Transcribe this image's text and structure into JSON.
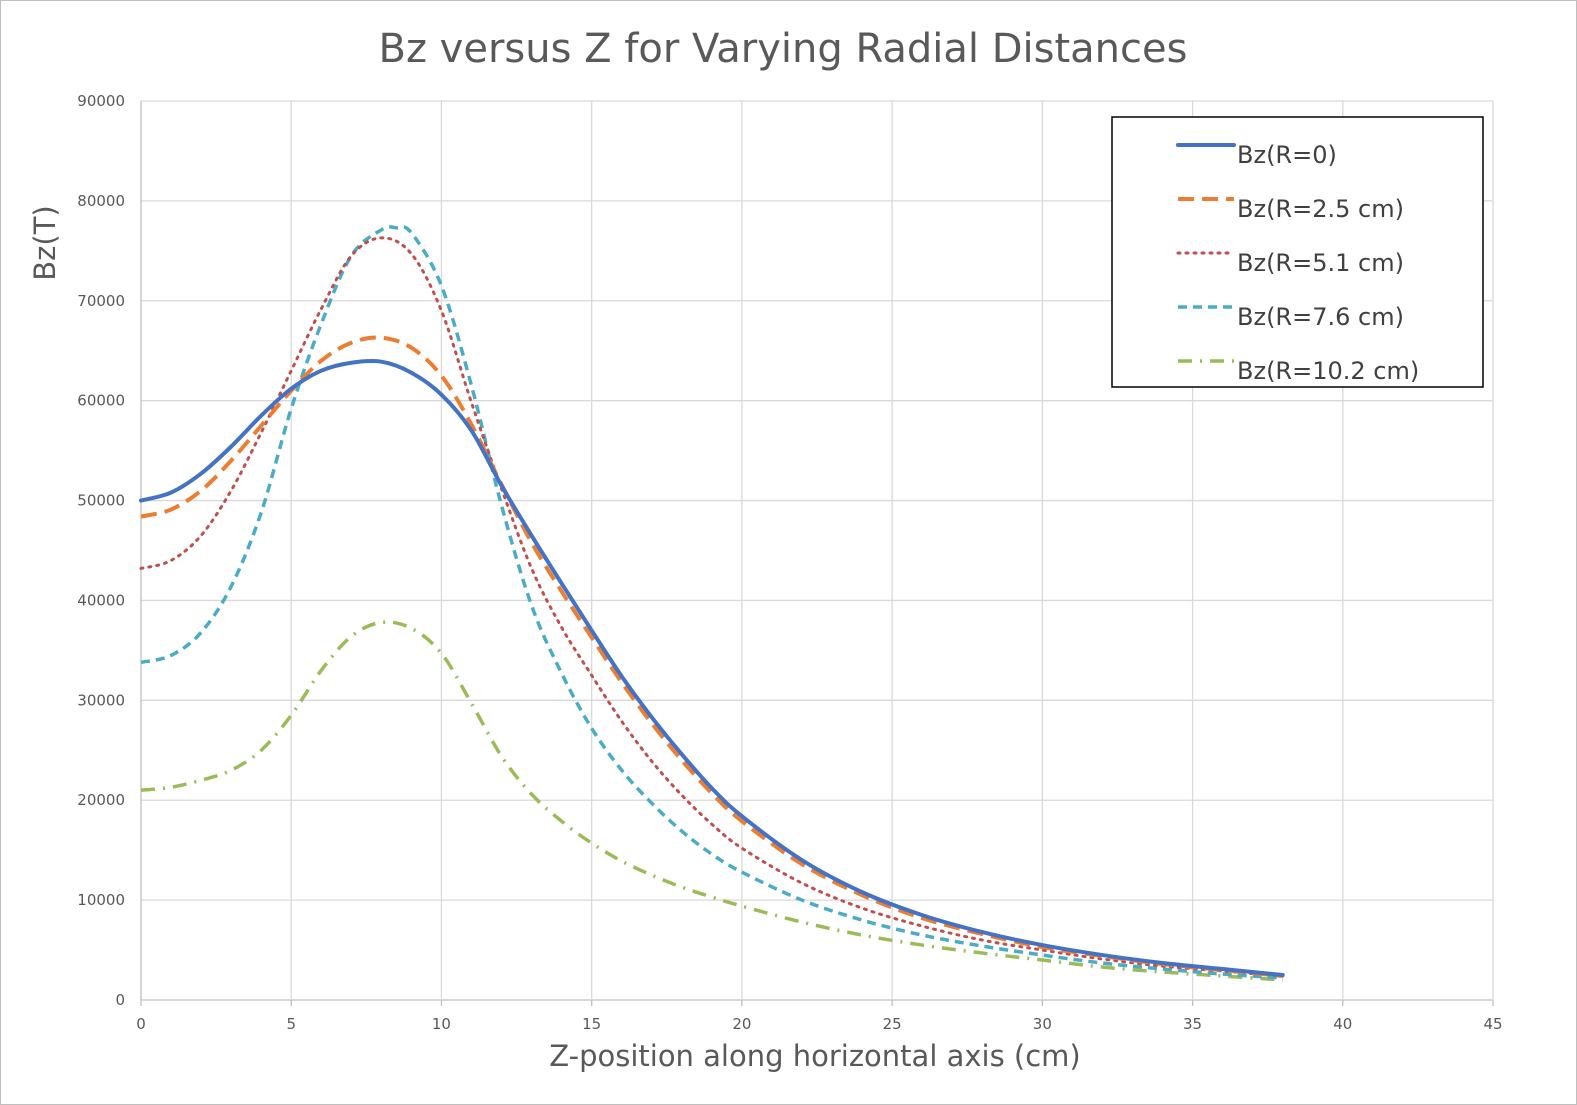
{
  "chart_data": {
    "type": "line",
    "title": "Bz versus Z for Varying Radial Distances",
    "xlabel": "Z-position along horizontal axis (cm)",
    "ylabel": "Bz(T)",
    "xlim": [
      0,
      45
    ],
    "ylim": [
      0,
      90000
    ],
    "x_ticks": [
      "0",
      "5",
      "10",
      "15",
      "20",
      "25",
      "30",
      "35",
      "40",
      "45"
    ],
    "y_ticks": [
      "0",
      "10000",
      "20000",
      "30000",
      "40000",
      "50000",
      "60000",
      "70000",
      "80000",
      "90000"
    ],
    "grid": true,
    "legend_position": "top-right",
    "series": [
      {
        "name": "Bz(R=0)",
        "color": "#4472C4",
        "dash": "solid",
        "x": [
          0,
          1,
          2,
          3,
          4,
          5,
          6,
          7,
          8,
          9,
          10,
          11,
          12,
          13,
          14,
          15,
          16,
          17,
          18,
          19,
          20,
          22,
          24,
          26,
          28,
          30,
          32,
          34,
          36,
          38
        ],
        "y": [
          50000,
          50800,
          52700,
          55400,
          58500,
          61200,
          63000,
          63800,
          63900,
          62800,
          60600,
          57000,
          51500,
          46500,
          41700,
          37000,
          32400,
          28300,
          24600,
          21200,
          18400,
          14000,
          10800,
          8500,
          6800,
          5500,
          4500,
          3700,
          3100,
          2500
        ]
      },
      {
        "name": "Bz(R=2.5 cm)",
        "color": "#ED7D31",
        "dash": "dash",
        "x": [
          0,
          1,
          2,
          3,
          4,
          5,
          6,
          7,
          8,
          9,
          10,
          11,
          12,
          13,
          14,
          15,
          16,
          17,
          18,
          19,
          20,
          22,
          24,
          26,
          28,
          30,
          32,
          34,
          36,
          38
        ],
        "y": [
          48400,
          49100,
          51000,
          54000,
          57500,
          61000,
          64000,
          65800,
          66300,
          65300,
          62500,
          57600,
          51600,
          45800,
          40900,
          36300,
          31800,
          27700,
          24000,
          20700,
          17900,
          13600,
          10500,
          8200,
          6600,
          5300,
          4400,
          3600,
          3000,
          2400
        ]
      },
      {
        "name": "Bz(R=5.1 cm)",
        "color": "#C0504D",
        "dash": "dot",
        "x": [
          0,
          1,
          2,
          3,
          4,
          5,
          6,
          7,
          8,
          9,
          10,
          11,
          12,
          13,
          14,
          15,
          16,
          17,
          18,
          19,
          20,
          22,
          24,
          26,
          28,
          30,
          32,
          34,
          36,
          38
        ],
        "y": [
          43200,
          44000,
          46500,
          51000,
          56800,
          63000,
          69200,
          74500,
          76300,
          74700,
          69000,
          59800,
          51200,
          43200,
          37300,
          32500,
          27900,
          23900,
          20500,
          17600,
          15200,
          11700,
          9200,
          7400,
          6000,
          5000,
          4100,
          3400,
          2900,
          2400
        ]
      },
      {
        "name": "Bz(R=7.6 cm)",
        "color": "#4BACC6",
        "dash": "dash-short",
        "x": [
          0,
          1,
          2,
          3,
          4,
          5,
          6,
          7,
          8,
          8.5,
          9,
          10,
          11,
          12,
          13,
          14,
          15,
          16,
          17,
          18,
          19,
          20,
          22,
          24,
          26,
          28,
          30,
          32,
          34,
          36,
          38
        ],
        "y": [
          33800,
          34500,
          36800,
          41400,
          48800,
          59200,
          67700,
          74500,
          77100,
          77300,
          76800,
          71500,
          61500,
          49500,
          39500,
          32700,
          27200,
          23000,
          19700,
          16900,
          14600,
          12800,
          10000,
          8000,
          6500,
          5400,
          4500,
          3700,
          3100,
          2600,
          2200
        ]
      },
      {
        "name": "Bz(R=10.2 cm)",
        "color": "#9BBB59",
        "dash": "dash-dot",
        "x": [
          0,
          1,
          2,
          3,
          4,
          5,
          6,
          7,
          8,
          9,
          10,
          11,
          12,
          13,
          14,
          15,
          16,
          17,
          18,
          19,
          20,
          22,
          24,
          26,
          28,
          30,
          32,
          34,
          36,
          38
        ],
        "y": [
          21000,
          21300,
          22000,
          23000,
          25000,
          28500,
          33000,
          36400,
          37800,
          37200,
          34700,
          29700,
          24400,
          20600,
          17900,
          15700,
          13900,
          12500,
          11300,
          10300,
          9400,
          7800,
          6500,
          5500,
          4700,
          4000,
          3300,
          2800,
          2400,
          2000
        ]
      }
    ]
  }
}
